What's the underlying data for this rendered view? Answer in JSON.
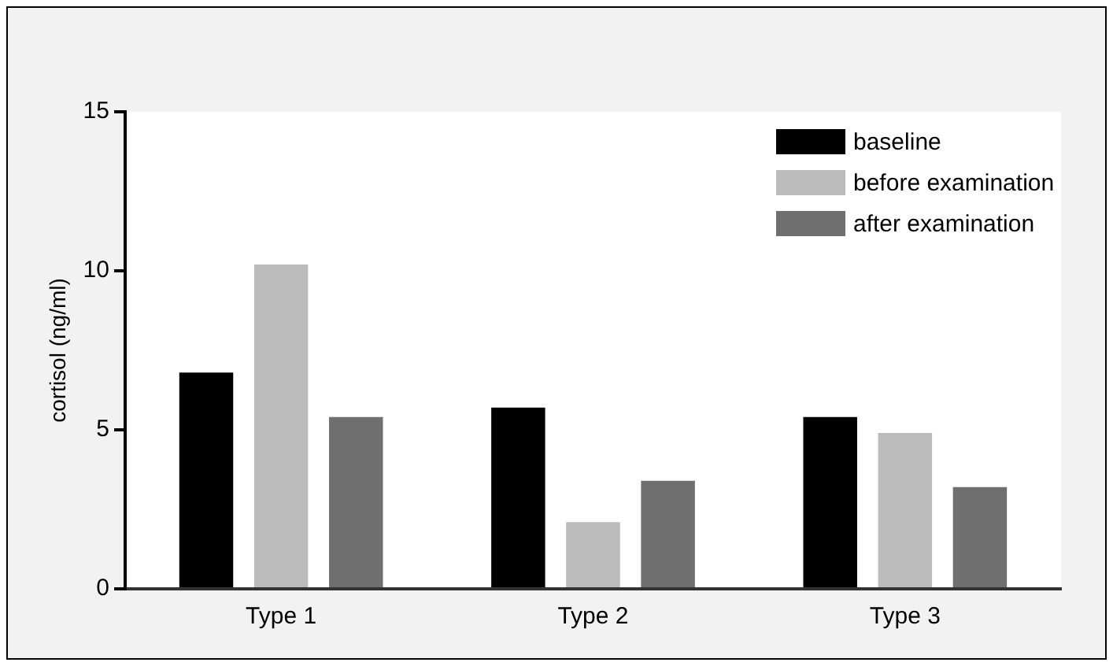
{
  "chart_data": {
    "type": "bar",
    "ylabel": "cortisol (ng/ml)",
    "categories": [
      "Type 1",
      "Type 2",
      "Type 3"
    ],
    "series": [
      {
        "name": "baseline",
        "color": "#000000",
        "values": [
          6.8,
          5.7,
          5.4
        ]
      },
      {
        "name": "before examination",
        "color": "#bbbbbb",
        "values": [
          10.2,
          2.1,
          4.9
        ]
      },
      {
        "name": "after examination",
        "color": "#6f6f6f",
        "values": [
          5.4,
          3.4,
          3.2
        ]
      }
    ],
    "ylim": [
      0,
      15
    ],
    "yticks": [
      0,
      5,
      10,
      15
    ],
    "grid": false,
    "legend": "top right"
  }
}
